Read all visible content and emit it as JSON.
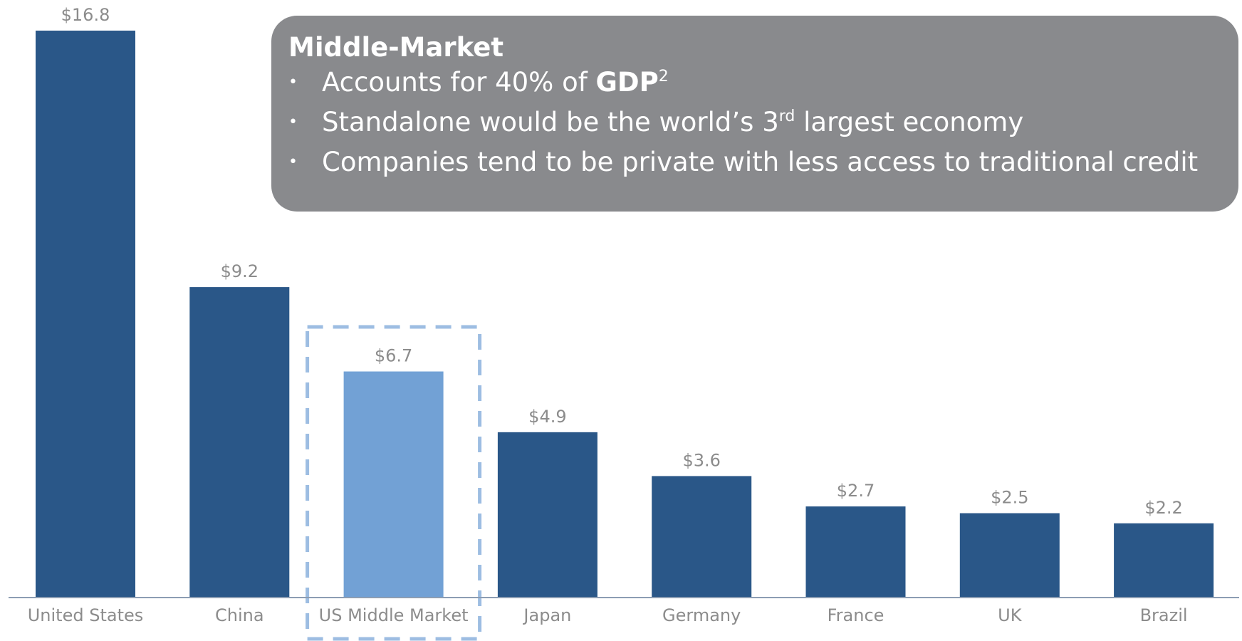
{
  "chart_data": {
    "type": "bar",
    "categories": [
      "United States",
      "China",
      "US Middle Market",
      "Japan",
      "Germany",
      "France",
      "UK",
      "Brazil"
    ],
    "values": [
      16.8,
      9.2,
      6.7,
      4.9,
      3.6,
      2.7,
      2.5,
      2.2
    ],
    "value_labels": [
      "$16.8",
      "$9.2",
      "$6.7",
      "$4.9",
      "$3.6",
      "$2.7",
      "$2.5",
      "$2.2"
    ],
    "highlight_index": 2,
    "title": "",
    "xlabel": "",
    "ylabel": "",
    "ylim": [
      0,
      16.8
    ],
    "grid": false,
    "colors": {
      "bar": "#2a5788",
      "highlight_bar": "#72a1d5",
      "highlight_box": "#9dbde2",
      "axis": "#8c9db3",
      "label": "#8c8c8c"
    }
  },
  "callout": {
    "title": "Middle-Market",
    "background": "#898a8d",
    "bullet_symbol": "•",
    "bullets": {
      "b1_text": "Accounts for 40% of ",
      "b1_bold": "GDP",
      "b1_sup": "2",
      "b2_pre": "Standalone would be the world’s 3",
      "b2_sup": "rd",
      "b2_post": " largest economy",
      "b3_text": "Companies tend to be private with less access to traditional credit"
    }
  }
}
